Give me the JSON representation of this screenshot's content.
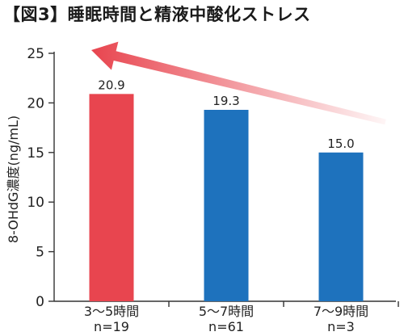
{
  "chart_data": {
    "type": "bar",
    "title": "【図3】睡眠時間と精液中酸化ストレス",
    "ylabel": "8-OHdG濃度(ng/mL)",
    "xlabel": "",
    "ylim": [
      0,
      25
    ],
    "yticks": [
      0,
      5,
      10,
      15,
      20,
      25
    ],
    "grid": false,
    "categories": [
      {
        "label": "3〜5時間",
        "n": "n=19"
      },
      {
        "label": "5〜7時間",
        "n": "n=61"
      },
      {
        "label": "7〜9時間",
        "n": "n=3"
      }
    ],
    "values": [
      20.9,
      19.3,
      15.0
    ],
    "value_labels": [
      "20.9",
      "19.3",
      "15.0"
    ],
    "colors": [
      "#e8454f",
      "#1e72bd",
      "#1e72bd"
    ],
    "arrow": {
      "direction": "increasing toward shorter sleep",
      "from_category": 2,
      "to_category": 0,
      "color": "#e8454f"
    }
  }
}
